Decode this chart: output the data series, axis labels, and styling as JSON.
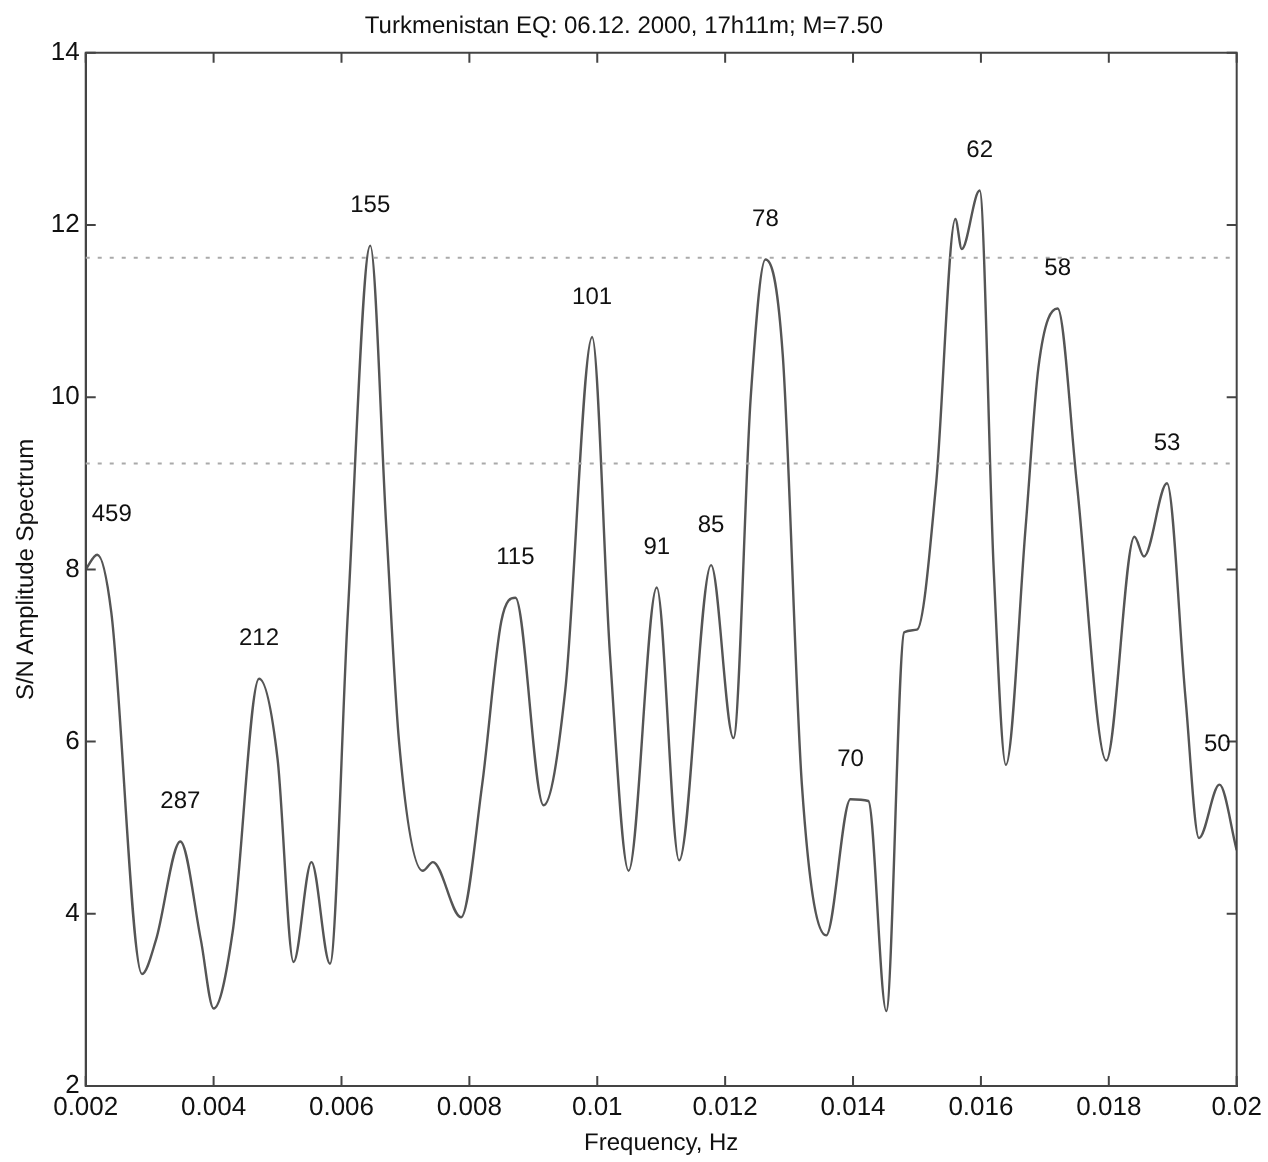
{
  "chart_data": {
    "type": "line",
    "title": "Turkmenistan EQ: 06.12. 2000, 17h11m; M=7.50",
    "xlabel": "Frequency, Hz",
    "ylabel": "S/N Amplitude Spectrum",
    "xlim": [
      0.002,
      0.02
    ],
    "ylim": [
      2,
      14
    ],
    "xticks": [
      0.002,
      0.004,
      0.006,
      0.008,
      0.01,
      0.012,
      0.014,
      0.016,
      0.018,
      0.02
    ],
    "yticks": [
      2,
      4,
      6,
      8,
      10,
      12,
      14
    ],
    "grid": false,
    "legend": false,
    "marker": "none",
    "line_style": "solid",
    "series": [
      {
        "color": "#555555",
        "x": [
          0.002,
          0.00218,
          0.0024,
          0.00288,
          0.0031,
          0.00348,
          0.0038,
          0.004,
          0.0043,
          0.00471,
          0.005,
          0.00525,
          0.00553,
          0.00582,
          0.0061,
          0.00645,
          0.0067,
          0.0069,
          0.00727,
          0.00743,
          0.00787,
          0.0082,
          0.0085,
          0.00872,
          0.00916,
          0.0095,
          0.00992,
          0.0102,
          0.01049,
          0.01093,
          0.01128,
          0.01178,
          0.01213,
          0.0124,
          0.01263,
          0.0129,
          0.0132,
          0.01358,
          0.01396,
          0.01424,
          0.01452,
          0.0148,
          0.015,
          0.0153,
          0.0156,
          0.0157,
          0.01598,
          0.0162,
          0.01639,
          0.0167,
          0.0169,
          0.0172,
          0.0175,
          0.01796,
          0.0184,
          0.01855,
          0.01891,
          0.0192,
          0.01941,
          0.01973,
          0.02
        ],
        "values": [
          8.0,
          8.17,
          7.5,
          3.3,
          3.7,
          4.84,
          3.7,
          2.9,
          3.8,
          6.73,
          5.8,
          3.44,
          4.6,
          3.42,
          7.5,
          11.76,
          8.5,
          6.0,
          4.5,
          4.6,
          3.96,
          5.5,
          7.4,
          7.67,
          5.26,
          6.6,
          10.7,
          7.0,
          4.5,
          7.79,
          4.62,
          8.05,
          6.04,
          10.0,
          11.6,
          10.5,
          5.5,
          3.75,
          5.33,
          5.31,
          2.87,
          7.27,
          7.3,
          9.0,
          12.07,
          11.72,
          12.4,
          8.0,
          5.73,
          8.5,
          10.35,
          11.03,
          9.0,
          5.78,
          8.38,
          8.15,
          9.0,
          6.5,
          4.88,
          5.5,
          4.74
        ]
      }
    ],
    "ref_lines": [
      {
        "axis": "y",
        "value": 11.62,
        "color": "#aaaaaa",
        "line_style": "dotted"
      },
      {
        "axis": "y",
        "value": 9.23,
        "color": "#aaaaaa",
        "line_style": "dotted"
      }
    ],
    "annotations": [
      {
        "text": "459",
        "x": 0.00218,
        "y": 8.17
      },
      {
        "text": "287",
        "x": 0.00348,
        "y": 4.84
      },
      {
        "text": "212",
        "x": 0.00471,
        "y": 6.73
      },
      {
        "text": "155",
        "x": 0.00645,
        "y": 11.76
      },
      {
        "text": "115",
        "x": 0.00872,
        "y": 7.67
      },
      {
        "text": "101",
        "x": 0.00992,
        "y": 10.7
      },
      {
        "text": "91",
        "x": 0.01093,
        "y": 7.79
      },
      {
        "text": "85",
        "x": 0.01178,
        "y": 8.05
      },
      {
        "text": "78",
        "x": 0.01263,
        "y": 11.6
      },
      {
        "text": "70",
        "x": 0.01396,
        "y": 5.33
      },
      {
        "text": "62",
        "x": 0.01598,
        "y": 12.4
      },
      {
        "text": "58",
        "x": 0.0172,
        "y": 11.03
      },
      {
        "text": "53",
        "x": 0.01891,
        "y": 9.0
      },
      {
        "text": "50",
        "x": 0.01973,
        "y": 5.5
      }
    ]
  }
}
